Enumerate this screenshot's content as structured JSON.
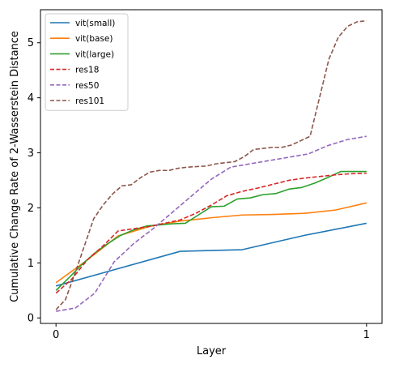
{
  "chart_data": {
    "type": "line",
    "title": "",
    "xlabel": "Layer",
    "ylabel": "Cumulative Change Rate of 2-Wasserstein Distance",
    "xlim": [
      -0.05,
      1.05
    ],
    "ylim": [
      -0.1,
      5.6
    ],
    "xticks": [
      0,
      1
    ],
    "xtick_labels": [
      "0",
      "1"
    ],
    "yticks": [
      0,
      1,
      2,
      3,
      4,
      5
    ],
    "ytick_labels": [
      "0",
      "1",
      "2",
      "3",
      "4",
      "5"
    ],
    "grid": false,
    "legend_position": "top-left",
    "series": [
      {
        "name": "vit(small)",
        "color": "#1f77b4",
        "dash": "solid",
        "x": [
          0,
          0.4,
          0.6,
          0.8,
          1.0
        ],
        "y": [
          0.58,
          1.21,
          1.24,
          1.5,
          1.72
        ]
      },
      {
        "name": "vit(base)",
        "color": "#ff7f0e",
        "dash": "solid",
        "x": [
          0,
          0.1,
          0.2,
          0.3,
          0.4,
          0.5,
          0.6,
          0.7,
          0.8,
          0.9,
          1.0
        ],
        "y": [
          0.64,
          1.05,
          1.49,
          1.66,
          1.76,
          1.82,
          1.87,
          1.88,
          1.9,
          1.96,
          2.09
        ]
      },
      {
        "name": "vit(large)",
        "color": "#2ca02c",
        "dash": "solid",
        "x": [
          0,
          0.0417,
          0.0833,
          0.125,
          0.1667,
          0.2083,
          0.25,
          0.2917,
          0.3333,
          0.375,
          0.4167,
          0.4583,
          0.5,
          0.5417,
          0.5833,
          0.625,
          0.6667,
          0.7083,
          0.75,
          0.7917,
          0.8333,
          0.875,
          0.9167,
          0.9583,
          1.0
        ],
        "y": [
          0.5,
          0.73,
          0.97,
          1.18,
          1.35,
          1.5,
          1.6,
          1.67,
          1.69,
          1.71,
          1.72,
          1.87,
          2.02,
          2.03,
          2.16,
          2.18,
          2.24,
          2.26,
          2.34,
          2.37,
          2.45,
          2.55,
          2.66,
          2.66,
          2.66
        ]
      },
      {
        "name": "res18",
        "color": "#d62728",
        "dash": "dashed",
        "x": [
          0,
          0.05,
          0.1,
          0.15,
          0.2,
          0.25,
          0.3,
          0.35,
          0.4,
          0.45,
          0.5,
          0.55,
          0.6,
          0.65,
          0.7,
          0.75,
          0.8,
          0.85,
          0.9,
          0.95,
          1.0
        ],
        "y": [
          0.45,
          0.7,
          1.05,
          1.3,
          1.58,
          1.62,
          1.66,
          1.72,
          1.78,
          1.9,
          2.05,
          2.22,
          2.3,
          2.36,
          2.43,
          2.5,
          2.54,
          2.57,
          2.6,
          2.62,
          2.63
        ]
      },
      {
        "name": "res50",
        "color": "#9467bd",
        "dash": "dashed",
        "x": [
          0,
          0.0625,
          0.125,
          0.1875,
          0.25,
          0.3125,
          0.375,
          0.4375,
          0.5,
          0.5625,
          0.625,
          0.6875,
          0.75,
          0.8125,
          0.875,
          0.9375,
          1.0
        ],
        "y": [
          0.12,
          0.18,
          0.45,
          1.02,
          1.35,
          1.62,
          1.92,
          2.22,
          2.52,
          2.74,
          2.8,
          2.86,
          2.92,
          2.98,
          3.13,
          3.24,
          3.3
        ]
      },
      {
        "name": "res101",
        "color": "#8c564b",
        "dash": "dashed",
        "x": [
          0,
          0.0303,
          0.0606,
          0.0909,
          0.1212,
          0.1515,
          0.1818,
          0.2121,
          0.2424,
          0.2727,
          0.303,
          0.3333,
          0.3636,
          0.3939,
          0.4242,
          0.4545,
          0.4848,
          0.5152,
          0.5455,
          0.5758,
          0.6061,
          0.6364,
          0.6667,
          0.697,
          0.7273,
          0.7576,
          0.7879,
          0.8182,
          0.8485,
          0.8788,
          0.9091,
          0.9394,
          0.9697,
          1.0
        ],
        "y": [
          0.15,
          0.33,
          0.8,
          1.3,
          1.8,
          2.05,
          2.25,
          2.4,
          2.42,
          2.55,
          2.65,
          2.68,
          2.68,
          2.72,
          2.74,
          2.75,
          2.76,
          2.8,
          2.82,
          2.84,
          2.93,
          3.06,
          3.08,
          3.1,
          3.1,
          3.14,
          3.22,
          3.3,
          4.0,
          4.7,
          5.1,
          5.3,
          5.38,
          5.4
        ]
      }
    ]
  }
}
